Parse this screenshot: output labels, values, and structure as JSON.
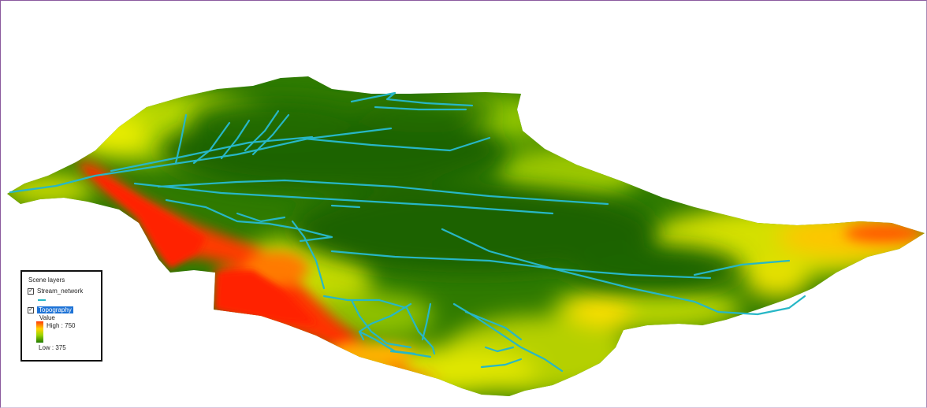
{
  "legend": {
    "title": "Scene layers",
    "layers": [
      {
        "label": "Stream_network",
        "checked": true
      },
      {
        "label": "Topography",
        "checked": true,
        "selected": true
      }
    ],
    "field": "Value",
    "high": "High : 750",
    "low": "Low : 375"
  },
  "colors": {
    "low": "#1f6b00",
    "mid": "#a8d400",
    "yellow": "#ffe400",
    "high": "#ff2a00",
    "stream": "#27b7c6",
    "frame": "#8b5a9e"
  }
}
